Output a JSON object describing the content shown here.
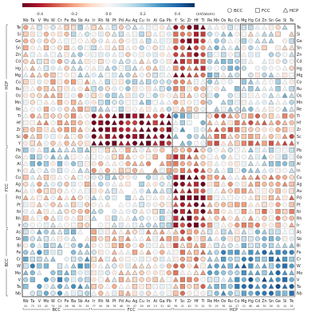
{
  "chart_data": {
    "type": "heatmap",
    "title": "",
    "colorbar": {
      "ticks": [
        "-0.4",
        "-0.2",
        "0.0",
        "0.2",
        "0.4"
      ],
      "range": [
        -0.5,
        0.5
      ],
      "unit": "(eV/atom)",
      "colors": [
        "#67001f",
        "#b2182b",
        "#d6604d",
        "#f4a582",
        "#fddbc7",
        "#f7f7f7",
        "#d1e5f0",
        "#92c5de",
        "#4393c3",
        "#2166ac",
        "#053061"
      ]
    },
    "legend": [
      {
        "label": "BCC",
        "shape": "circle"
      },
      {
        "label": "FCC",
        "shape": "square"
      },
      {
        "label": "HCP",
        "shape": "triangle"
      }
    ],
    "x_elements": [
      "Nb",
      "Ta",
      "V",
      "Mo",
      "W",
      "Cr",
      "Fe",
      "Ba",
      "Sb",
      "As",
      "Ir",
      "Rh",
      "Ni",
      "Pt",
      "Pd",
      "Au",
      "Ag",
      "Cu",
      "In",
      "Al",
      "Ga",
      "Pb",
      "Y",
      "Sc",
      "Zr",
      "Hf",
      "Ti",
      "Re",
      "Mn",
      "Os",
      "Ru",
      "Co",
      "Mg",
      "Hg",
      "Cd",
      "Zn",
      "Sn",
      "Ge",
      "Si",
      "Te"
    ],
    "x_atomic_numbers": [
      "41",
      "73",
      "23",
      "42",
      "74",
      "24",
      "26",
      "56",
      "51",
      "33",
      "77",
      "45",
      "28",
      "78",
      "46",
      "79",
      "47",
      "29",
      "49",
      "13",
      "31",
      "82",
      "39",
      "21",
      "40",
      "72",
      "22",
      "75",
      "25",
      "76",
      "44",
      "27",
      "12",
      "80",
      "48",
      "30",
      "50",
      "32",
      "14",
      "52"
    ],
    "x_groups": [
      {
        "label": "BCC",
        "start": 0,
        "end": 10
      },
      {
        "label": "FCC",
        "start": 10,
        "end": 22
      },
      {
        "label": "HCP",
        "start": 22,
        "end": 40
      }
    ],
    "y_elements": [
      "Te",
      "Si",
      "Ge",
      "Sn",
      "Zn",
      "Cd",
      "Hg",
      "Mg",
      "Co",
      "Ru",
      "Os",
      "Mn",
      "Re",
      "Ti",
      "Hf",
      "Zr",
      "Sc",
      "Y",
      "Pb",
      "Ga",
      "Al",
      "In",
      "Cu",
      "Ag",
      "Au",
      "Pd",
      "Pt",
      "Ni",
      "Rh",
      "Ir",
      "As",
      "Sb",
      "Bi",
      "Fe",
      "Cr",
      "W",
      "Mo",
      "V",
      "Ta",
      "Nb"
    ],
    "y_groups": [
      {
        "label": "HCP",
        "start": 0,
        "end": 18
      },
      {
        "label": "FCC",
        "start": 18,
        "end": 30
      },
      {
        "label": "BCC",
        "start": 30,
        "end": 40
      }
    ],
    "blocks": [
      {
        "rows": [
          0,
          8
        ],
        "cols": [
          0,
          7
        ],
        "value": -0.05
      },
      {
        "rows": [
          0,
          8
        ],
        "cols": [
          7,
          10
        ],
        "value": 0.05
      },
      {
        "rows": [
          0,
          8
        ],
        "cols": [
          10,
          22
        ],
        "value": 0.0
      },
      {
        "rows": [
          0,
          8
        ],
        "cols": [
          22,
          27
        ],
        "value": -0.35
      },
      {
        "rows": [
          0,
          8
        ],
        "cols": [
          27,
          32
        ],
        "value": 0.1
      },
      {
        "rows": [
          0,
          8
        ],
        "cols": [
          32,
          40
        ],
        "value": 0.02
      },
      {
        "rows": [
          8,
          13
        ],
        "cols": [
          0,
          10
        ],
        "value": -0.08
      },
      {
        "rows": [
          8,
          13
        ],
        "cols": [
          10,
          22
        ],
        "value": 0.05
      },
      {
        "rows": [
          8,
          13
        ],
        "cols": [
          22,
          27
        ],
        "value": -0.1
      },
      {
        "rows": [
          8,
          13
        ],
        "cols": [
          27,
          32
        ],
        "value": 0.08
      },
      {
        "rows": [
          8,
          13
        ],
        "cols": [
          32,
          40
        ],
        "value": 0.1
      },
      {
        "rows": [
          13,
          18
        ],
        "cols": [
          0,
          10
        ],
        "value": -0.1
      },
      {
        "rows": [
          13,
          18
        ],
        "cols": [
          10,
          22
        ],
        "value": -0.45
      },
      {
        "rows": [
          13,
          18
        ],
        "cols": [
          22,
          27
        ],
        "value": 0.15
      },
      {
        "rows": [
          13,
          18
        ],
        "cols": [
          27,
          32
        ],
        "value": -0.2
      },
      {
        "rows": [
          13,
          18
        ],
        "cols": [
          32,
          40
        ],
        "value": -0.2
      },
      {
        "rows": [
          18,
          22
        ],
        "cols": [
          0,
          10
        ],
        "value": 0.1
      },
      {
        "rows": [
          18,
          22
        ],
        "cols": [
          10,
          22
        ],
        "value": -0.1
      },
      {
        "rows": [
          18,
          22
        ],
        "cols": [
          22,
          27
        ],
        "value": -0.25
      },
      {
        "rows": [
          18,
          22
        ],
        "cols": [
          27,
          32
        ],
        "value": 0.05
      },
      {
        "rows": [
          18,
          22
        ],
        "cols": [
          32,
          40
        ],
        "value": 0.1
      },
      {
        "rows": [
          22,
          30
        ],
        "cols": [
          0,
          10
        ],
        "value": -0.05
      },
      {
        "rows": [
          22,
          30
        ],
        "cols": [
          10,
          22
        ],
        "value": 0.05
      },
      {
        "rows": [
          22,
          30
        ],
        "cols": [
          22,
          27
        ],
        "value": -0.45
      },
      {
        "rows": [
          22,
          30
        ],
        "cols": [
          27,
          32
        ],
        "value": -0.1
      },
      {
        "rows": [
          22,
          30
        ],
        "cols": [
          32,
          40
        ],
        "value": -0.15
      },
      {
        "rows": [
          30,
          33
        ],
        "cols": [
          0,
          10
        ],
        "value": 0.1
      },
      {
        "rows": [
          30,
          33
        ],
        "cols": [
          10,
          22
        ],
        "value": -0.1
      },
      {
        "rows": [
          30,
          33
        ],
        "cols": [
          22,
          27
        ],
        "value": -0.2
      },
      {
        "rows": [
          30,
          33
        ],
        "cols": [
          27,
          32
        ],
        "value": 0.05
      },
      {
        "rows": [
          30,
          33
        ],
        "cols": [
          32,
          40
        ],
        "value": 0.1
      },
      {
        "rows": [
          33,
          40
        ],
        "cols": [
          0,
          10
        ],
        "value": 0.2
      },
      {
        "rows": [
          33,
          40
        ],
        "cols": [
          10,
          22
        ],
        "value": -0.05
      },
      {
        "rows": [
          33,
          40
        ],
        "cols": [
          22,
          27
        ],
        "value": -0.15
      },
      {
        "rows": [
          33,
          40
        ],
        "cols": [
          27,
          32
        ],
        "value": 0.2
      },
      {
        "rows": [
          33,
          40
        ],
        "cols": [
          32,
          40
        ],
        "value": 0.3
      }
    ],
    "highlight_boxes": [
      {
        "rows": [
          0,
          8
        ],
        "cols": [
          32,
          40
        ]
      },
      {
        "rows": [
          8,
          13
        ],
        "cols": [
          27,
          32
        ]
      },
      {
        "rows": [
          13,
          18
        ],
        "cols": [
          22,
          27
        ]
      },
      {
        "rows": [
          18,
          22
        ],
        "cols": [
          10,
          22
        ]
      },
      {
        "rows": [
          22,
          30
        ],
        "cols": [
          10,
          22
        ]
      },
      {
        "rows": [
          30,
          40
        ],
        "cols": [
          0,
          10
        ]
      }
    ]
  }
}
